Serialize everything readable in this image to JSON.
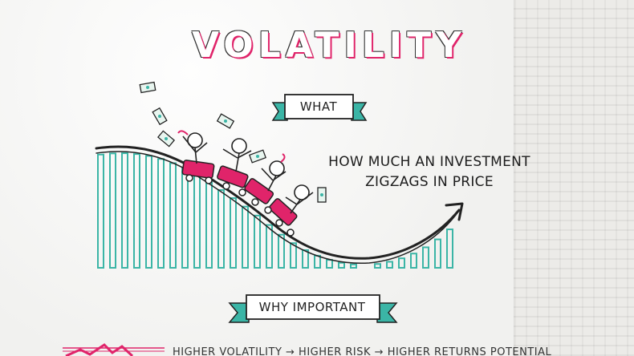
{
  "title": "VOLATILITY",
  "sections": {
    "what_label": "WHAT",
    "definition_line1": "HOW MUCH AN INVESTMENT",
    "definition_line2": "ZIGZAGS IN PRICE",
    "why_label": "WHY IMPORTANT",
    "bottom_text": "HIGHER VOLATILITY → HIGHER RISK → HIGHER RETURNS POTENTIAL"
  },
  "colors": {
    "accent_pink": "#e0246a",
    "teal": "#3bb5a6",
    "ink": "#222222"
  },
  "illustration": {
    "subject": "roller-coaster-with-riders-and-money",
    "riders": 4,
    "money_bills": 6
  }
}
